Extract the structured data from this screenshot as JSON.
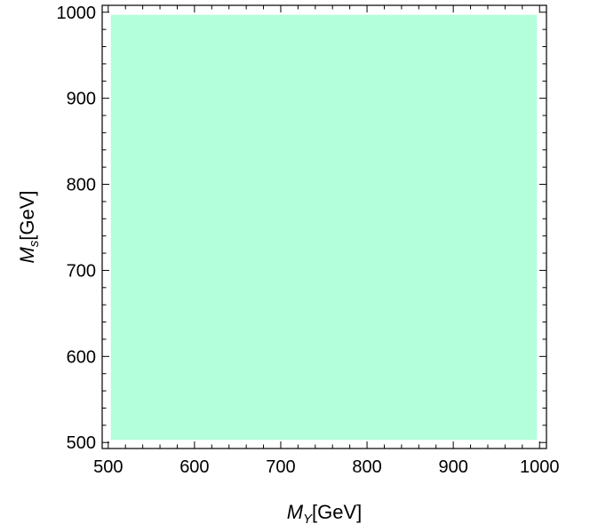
{
  "chart_data": {
    "type": "area",
    "xlabel": {
      "symbol": "M",
      "subscript": "Y",
      "unit": "[GeV]"
    },
    "ylabel": {
      "symbol": "M",
      "subscript": "s",
      "unit": "[GeV]"
    },
    "xlim": [
      493,
      1008
    ],
    "ylim": [
      493,
      1008
    ],
    "x_ticks": [
      500,
      600,
      700,
      800,
      900,
      1000
    ],
    "y_ticks": [
      500,
      600,
      700,
      800,
      900,
      1000
    ],
    "x_tick_labels": [
      "500",
      "600",
      "700",
      "800",
      "900",
      "1000"
    ],
    "y_tick_labels": [
      "500",
      "600",
      "700",
      "800",
      "900",
      "1000"
    ],
    "minor_tick_step": 20,
    "grid": false,
    "legend": "none",
    "series": [
      {
        "region": {
          "x": [
            503,
            997
          ],
          "y": [
            503,
            997
          ]
        },
        "color": "#b3ffdb"
      }
    ],
    "frame_color": "#000000"
  }
}
